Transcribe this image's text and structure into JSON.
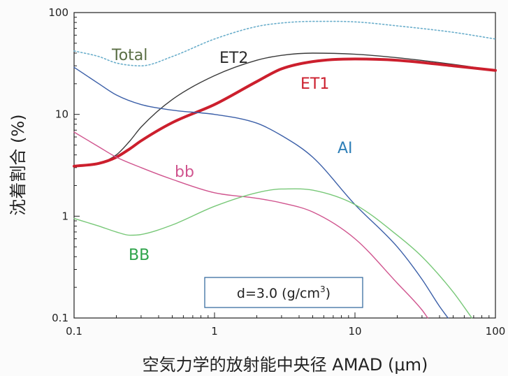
{
  "chart_data": {
    "type": "line",
    "xlabel": "空気力学的放射能中央径 AMAD (μm)",
    "ylabel": "沈着割合 (%)",
    "xscale": "log",
    "yscale": "log",
    "xlim": [
      0.1,
      100
    ],
    "ylim": [
      0.1,
      100
    ],
    "xticks": [
      {
        "value": 0.1,
        "label": "0.1"
      },
      {
        "value": 1,
        "label": "1"
      },
      {
        "value": 10,
        "label": "10"
      },
      {
        "value": 100,
        "label": "100"
      }
    ],
    "yticks": [
      {
        "value": 0.1,
        "label": "0.1"
      },
      {
        "value": 1,
        "label": "1"
      },
      {
        "value": 10,
        "label": "10"
      },
      {
        "value": 100,
        "label": "100"
      }
    ],
    "grid": false,
    "annotation": {
      "prefix": "d=3.0 (g/cm",
      "superscript": "3",
      "suffix": ")"
    },
    "series": [
      {
        "name": "Total",
        "color": "#6aaecb",
        "dash": true,
        "label_color": "#5a6e44",
        "x": [
          0.1,
          0.15,
          0.2,
          0.3,
          0.5,
          1,
          2,
          3,
          5,
          10,
          20,
          50,
          100
        ],
        "y": [
          42,
          37,
          32,
          30,
          37,
          55,
          73,
          79,
          82,
          81,
          74,
          64,
          55
        ]
      },
      {
        "name": "ET2",
        "color": "#3a3a3a",
        "dash": false,
        "width": 1.4,
        "label_color": "#2a2a2a",
        "x": [
          0.1,
          0.15,
          0.2,
          0.25,
          0.3,
          0.5,
          1,
          2,
          3,
          5,
          10,
          20,
          50,
          100
        ],
        "y": [
          3.1,
          3.3,
          4.0,
          5.5,
          7.5,
          14,
          24,
          34,
          38,
          40,
          39,
          36,
          31,
          27
        ]
      },
      {
        "name": "ET1",
        "color": "#cc1f2d",
        "dash": false,
        "width": 4,
        "label_color": "#cc1f2d",
        "x": [
          0.1,
          0.15,
          0.2,
          0.25,
          0.3,
          0.5,
          1,
          2,
          3,
          5,
          10,
          20,
          50,
          100
        ],
        "y": [
          3.1,
          3.3,
          3.8,
          4.6,
          5.5,
          8.3,
          12.5,
          21,
          28,
          33,
          35,
          34,
          30,
          27
        ]
      },
      {
        "name": "AI",
        "color": "#3b5fa8",
        "dash": false,
        "width": 1.4,
        "label_color": "#2e7fb8",
        "x": [
          0.1,
          0.15,
          0.2,
          0.3,
          0.5,
          1,
          2,
          3,
          5,
          10,
          20,
          30,
          40,
          46
        ],
        "y": [
          29,
          20,
          15.5,
          12.5,
          11,
          10,
          8.2,
          6.2,
          3.8,
          1.3,
          0.5,
          0.24,
          0.13,
          0.1
        ]
      },
      {
        "name": "bb",
        "color": "#d0548e",
        "dash": false,
        "width": 1.4,
        "label_color": "#d0548e",
        "x": [
          0.1,
          0.15,
          0.2,
          0.3,
          0.5,
          1,
          2,
          3,
          5,
          10,
          20,
          30,
          33
        ],
        "y": [
          6.7,
          4.8,
          3.8,
          3.0,
          2.3,
          1.7,
          1.5,
          1.35,
          1.1,
          0.6,
          0.22,
          0.12,
          0.1
        ]
      },
      {
        "name": "BB",
        "color": "#78c878",
        "dash": false,
        "width": 1.4,
        "label_color": "#2ea34a",
        "x": [
          0.1,
          0.15,
          0.2,
          0.25,
          0.3,
          0.5,
          1,
          2,
          3,
          5,
          10,
          20,
          30,
          50,
          68
        ],
        "y": [
          0.95,
          0.8,
          0.7,
          0.65,
          0.66,
          0.82,
          1.25,
          1.7,
          1.85,
          1.8,
          1.3,
          0.65,
          0.4,
          0.18,
          0.1
        ]
      }
    ]
  }
}
